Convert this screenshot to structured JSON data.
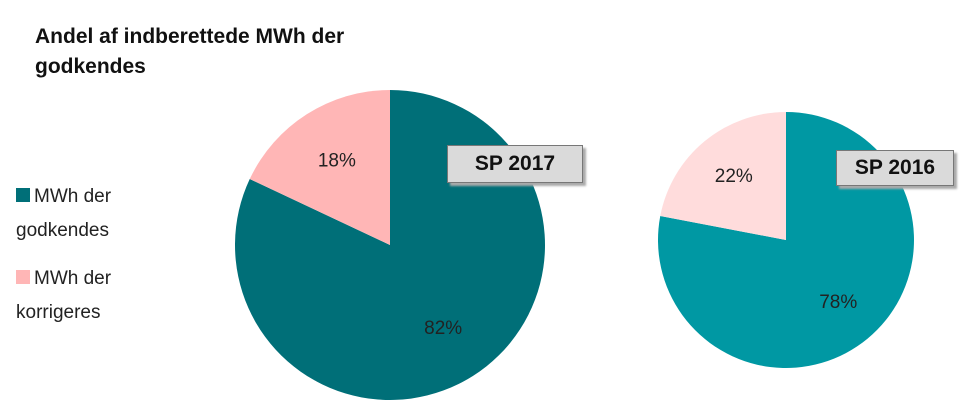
{
  "title": "Andel af indberettede MWh der godkendes",
  "chart_data": [
    {
      "type": "pie",
      "title": "SP 2017",
      "categories": [
        "MWh der godkendes",
        "MWh der korrigeres"
      ],
      "values": [
        82,
        18
      ],
      "value_labels": [
        "82%",
        "18%"
      ],
      "colors": [
        "#006f78",
        "#ffb6b6"
      ]
    },
    {
      "type": "pie",
      "title": "SP 2016",
      "categories": [
        "MWh der godkendes",
        "MWh der korrigeres"
      ],
      "values": [
        78,
        22
      ],
      "value_labels": [
        "78%",
        "22%"
      ],
      "colors": [
        "#0098a3",
        "#ffdcdc"
      ]
    }
  ]
}
